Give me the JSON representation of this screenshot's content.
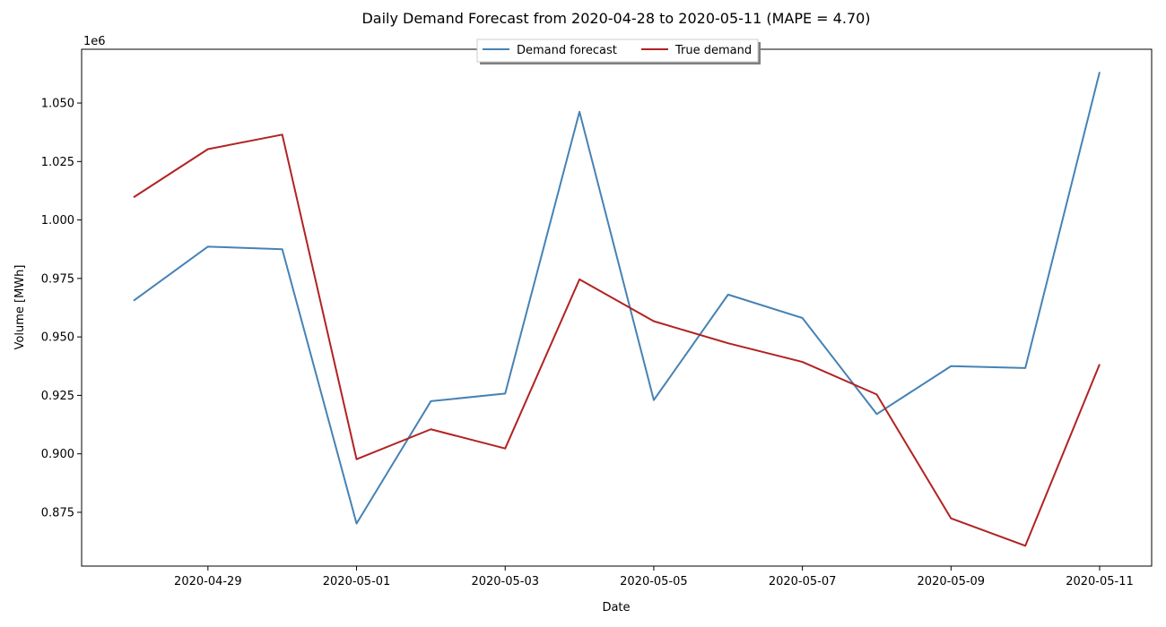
{
  "chart_data": {
    "type": "line",
    "title": "Daily Demand Forecast from 2020-04-28 to 2020-05-11 (MAPE = 4.70)",
    "xlabel": "Date",
    "ylabel": "Volume [MWh]",
    "y_offset_label": "1e6",
    "dates": [
      "2020-04-28",
      "2020-04-29",
      "2020-04-30",
      "2020-05-01",
      "2020-05-02",
      "2020-05-03",
      "2020-05-04",
      "2020-05-05",
      "2020-05-06",
      "2020-05-07",
      "2020-05-08",
      "2020-05-09",
      "2020-05-10",
      "2020-05-11"
    ],
    "x_ticks": [
      {
        "index": 1,
        "label": "2020-04-29"
      },
      {
        "index": 3,
        "label": "2020-05-01"
      },
      {
        "index": 5,
        "label": "2020-05-03"
      },
      {
        "index": 7,
        "label": "2020-05-05"
      },
      {
        "index": 9,
        "label": "2020-05-07"
      },
      {
        "index": 11,
        "label": "2020-05-09"
      },
      {
        "index": 13,
        "label": "2020-05-11"
      }
    ],
    "y_ticks": [
      {
        "value": 0.875,
        "label": "0.875"
      },
      {
        "value": 0.9,
        "label": "0.900"
      },
      {
        "value": 0.925,
        "label": "0.925"
      },
      {
        "value": 0.95,
        "label": "0.950"
      },
      {
        "value": 0.975,
        "label": "0.975"
      },
      {
        "value": 1.0,
        "label": "1.000"
      },
      {
        "value": 1.025,
        "label": "1.025"
      },
      {
        "value": 1.05,
        "label": "1.050"
      }
    ],
    "xlim": [
      -0.7,
      13.7
    ],
    "ylim": [
      0.852,
      1.073
    ],
    "grid": false,
    "legend_position": "top-center",
    "series": [
      {
        "name": "Demand forecast",
        "color": "#4682b4",
        "values": [
          0.9655,
          0.9886,
          0.9875,
          0.8702,
          0.9225,
          0.9258,
          1.0463,
          0.923,
          0.9681,
          0.9581,
          0.917,
          0.9375,
          0.9367,
          1.0633
        ]
      },
      {
        "name": "True demand",
        "color": "#b22222",
        "values": [
          1.0097,
          1.0303,
          1.0365,
          0.8977,
          0.9105,
          0.9023,
          0.9746,
          0.9567,
          0.9473,
          0.9393,
          0.9254,
          0.8724,
          0.8607,
          0.9383
        ]
      }
    ]
  }
}
